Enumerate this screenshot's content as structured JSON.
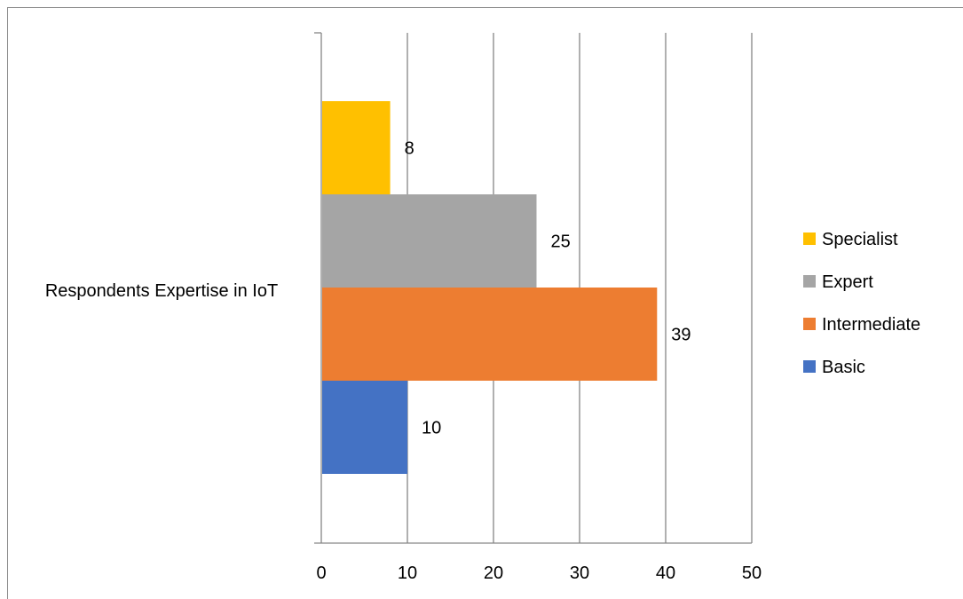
{
  "chart_data": {
    "type": "bar",
    "orientation": "horizontal",
    "categories": [
      "Respondents Expertise in IoT"
    ],
    "series": [
      {
        "name": "Basic",
        "values": [
          10
        ],
        "color": "#4472c4"
      },
      {
        "name": "Intermediate",
        "values": [
          39
        ],
        "color": "#ed7d31"
      },
      {
        "name": "Expert",
        "values": [
          25
        ],
        "color": "#a5a5a5"
      },
      {
        "name": "Specialist",
        "values": [
          8
        ],
        "color": "#ffc000"
      }
    ],
    "xlim": [
      0,
      50
    ],
    "x_ticks": [
      "0",
      "10",
      "20",
      "30",
      "40",
      "50"
    ],
    "grid": "vertical",
    "legend_position": "right",
    "data_labels": true
  }
}
